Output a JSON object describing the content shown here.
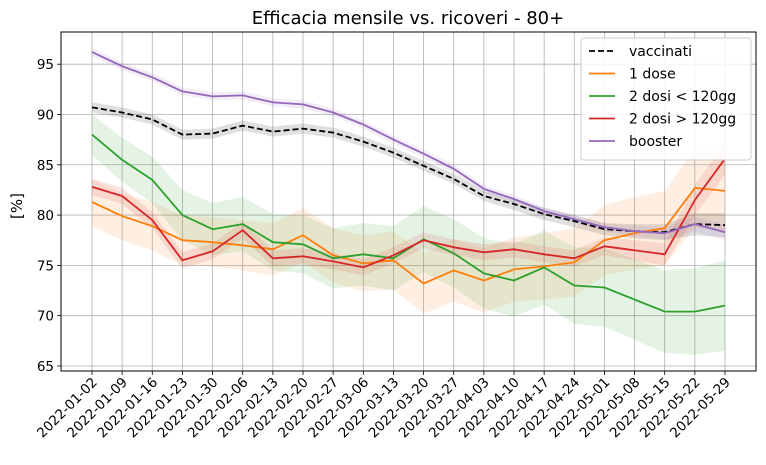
{
  "chart_data": {
    "type": "line",
    "title": "Efficacia mensile vs. ricoveri - 80+",
    "xlabel": "",
    "ylabel": "[%]",
    "ylim": [
      64.5,
      98.2
    ],
    "yticks": [
      65,
      70,
      75,
      80,
      85,
      90,
      95
    ],
    "grid": true,
    "legend_position": "top-right",
    "categories": [
      "2022-01-02",
      "2022-01-09",
      "2022-01-16",
      "2022-01-23",
      "2022-01-30",
      "2022-02-06",
      "2022-02-13",
      "2022-02-20",
      "2022-02-27",
      "2022-03-06",
      "2022-03-13",
      "2022-03-20",
      "2022-03-27",
      "2022-04-03",
      "2022-04-10",
      "2022-04-17",
      "2022-04-24",
      "2022-05-01",
      "2022-05-08",
      "2022-05-15",
      "2022-05-22",
      "2022-05-29"
    ],
    "series": [
      {
        "name": "vaccinati",
        "color": "#000000",
        "dash": true,
        "values": [
          90.7,
          90.2,
          89.5,
          88.0,
          88.1,
          88.9,
          88.3,
          88.6,
          88.2,
          87.3,
          86.2,
          84.9,
          83.6,
          81.9,
          81.1,
          80.1,
          79.4,
          78.6,
          78.4,
          78.3,
          79.1,
          79.0
        ],
        "lower": [
          90.2,
          89.7,
          89.0,
          87.5,
          87.6,
          88.4,
          87.8,
          88.1,
          87.7,
          86.8,
          85.7,
          84.4,
          83.1,
          81.4,
          80.5,
          79.5,
          78.8,
          78.0,
          77.7,
          77.5,
          78.0,
          77.8
        ],
        "upper": [
          91.2,
          90.7,
          90.0,
          88.5,
          88.6,
          89.4,
          88.8,
          89.1,
          88.7,
          87.8,
          86.7,
          85.4,
          84.1,
          82.4,
          81.7,
          80.7,
          80.0,
          79.2,
          79.1,
          79.1,
          80.2,
          80.2
        ]
      },
      {
        "name": "1 dose",
        "color": "#ff7f0e",
        "dash": false,
        "values": [
          81.3,
          79.9,
          78.9,
          77.5,
          77.3,
          77.0,
          76.6,
          78.0,
          76.0,
          75.2,
          75.5,
          73.2,
          74.5,
          73.5,
          74.6,
          74.9,
          75.3,
          77.5,
          78.2,
          78.7,
          82.7,
          82.4
        ],
        "lower": [
          78.9,
          77.5,
          76.5,
          75.0,
          74.9,
          74.5,
          74.0,
          75.3,
          73.3,
          72.4,
          72.6,
          70.2,
          71.4,
          70.3,
          71.4,
          71.6,
          71.9,
          74.0,
          74.6,
          75.0,
          78.8,
          78.4
        ],
        "upper": [
          83.6,
          82.2,
          81.3,
          80.0,
          79.8,
          79.5,
          79.2,
          80.7,
          78.7,
          78.0,
          78.4,
          76.2,
          77.6,
          76.7,
          77.8,
          78.2,
          78.7,
          81.0,
          81.8,
          82.4,
          86.6,
          86.4
        ]
      },
      {
        "name": "2 dosi < 120gg",
        "color": "#2ca02c",
        "dash": false,
        "values": [
          88.0,
          85.5,
          83.5,
          80.0,
          78.6,
          79.1,
          77.3,
          77.1,
          75.7,
          76.1,
          75.7,
          77.6,
          76.2,
          74.2,
          73.5,
          74.8,
          73.0,
          72.8,
          71.6,
          70.4,
          70.4,
          71.0
        ],
        "lower": [
          86.0,
          83.3,
          81.2,
          77.5,
          76.0,
          76.4,
          74.5,
          74.2,
          72.7,
          73.0,
          72.5,
          74.3,
          72.8,
          70.7,
          69.9,
          71.1,
          69.2,
          68.9,
          67.6,
          66.3,
          66.1,
          66.5
        ],
        "upper": [
          90.0,
          87.7,
          85.8,
          82.5,
          81.2,
          81.8,
          80.1,
          80.0,
          78.7,
          79.2,
          78.9,
          80.9,
          79.6,
          77.7,
          77.1,
          78.5,
          76.8,
          76.7,
          75.6,
          74.5,
          74.7,
          75.5
        ]
      },
      {
        "name": "2 dosi > 120gg",
        "color": "#d62728",
        "dash": false,
        "values": [
          82.8,
          81.9,
          79.5,
          75.5,
          76.4,
          78.5,
          75.7,
          75.9,
          75.4,
          74.8,
          76.0,
          77.5,
          76.8,
          76.3,
          76.6,
          76.1,
          75.7,
          76.9,
          76.5,
          76.1,
          81.5,
          85.6
        ],
        "lower": [
          82.0,
          81.1,
          78.7,
          74.7,
          75.6,
          77.7,
          74.9,
          75.1,
          74.6,
          74.0,
          75.2,
          76.7,
          76.0,
          75.5,
          75.8,
          75.3,
          74.9,
          76.0,
          75.5,
          75.0,
          80.0,
          84.0
        ],
        "upper": [
          83.6,
          82.7,
          80.3,
          76.3,
          77.2,
          79.3,
          76.5,
          76.7,
          76.2,
          75.6,
          76.8,
          78.3,
          77.6,
          77.1,
          77.4,
          76.9,
          76.5,
          77.8,
          77.5,
          77.2,
          83.0,
          87.2
        ]
      },
      {
        "name": "booster",
        "color": "#9467bd",
        "dash": false,
        "values": [
          96.2,
          94.8,
          93.7,
          92.3,
          91.8,
          91.9,
          91.2,
          91.0,
          90.2,
          89.0,
          87.5,
          86.1,
          84.6,
          82.6,
          81.6,
          80.4,
          79.6,
          78.8,
          78.4,
          78.2,
          79.1,
          78.3
        ],
        "lower": [
          95.8,
          94.4,
          93.3,
          91.9,
          91.4,
          91.5,
          90.8,
          90.6,
          89.8,
          88.6,
          87.1,
          85.7,
          84.2,
          82.2,
          81.2,
          80.0,
          79.2,
          78.4,
          77.9,
          77.6,
          78.4,
          77.5
        ],
        "upper": [
          96.6,
          95.2,
          94.1,
          92.7,
          92.2,
          92.3,
          91.6,
          91.4,
          90.6,
          89.4,
          87.9,
          86.5,
          85.0,
          83.0,
          82.0,
          80.8,
          80.0,
          79.2,
          78.9,
          78.8,
          79.8,
          79.1
        ]
      }
    ]
  }
}
